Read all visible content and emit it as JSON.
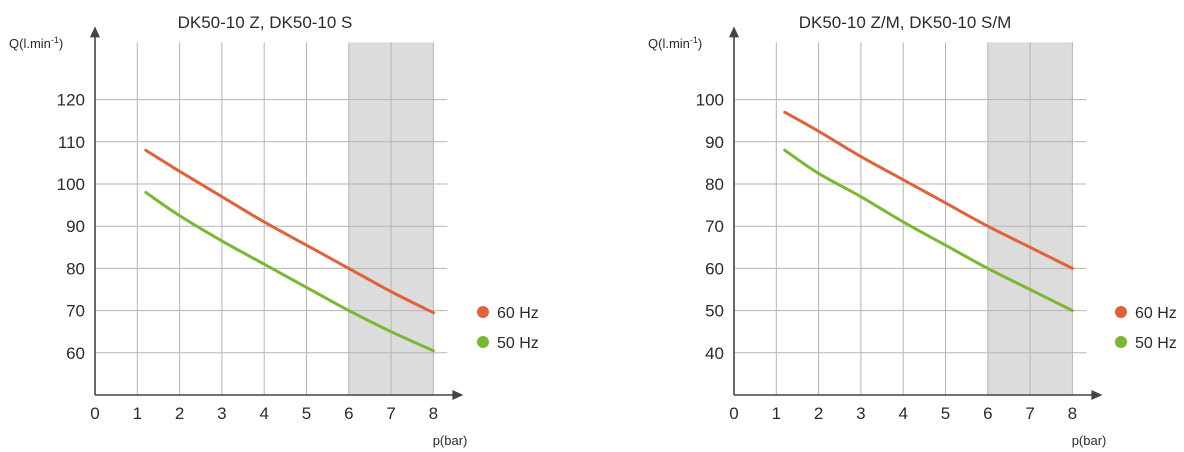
{
  "chart_data": [
    {
      "type": "line",
      "title": "DK50-10 Z, DK50-10 S",
      "ylabel": "Q(l.min",
      "ylabel_sup": "-1",
      "xlabel": "p(bar)",
      "xlim": [
        0,
        8
      ],
      "ylim": [
        50,
        130
      ],
      "x_ticks": [
        0,
        1,
        2,
        3,
        4,
        5,
        6,
        7,
        8
      ],
      "y_ticks": [
        60,
        70,
        80,
        90,
        100,
        110,
        120
      ],
      "shaded_x_range": [
        6,
        8
      ],
      "grid": true,
      "legend_position": "right",
      "series": [
        {
          "name": "60 Hz",
          "color": "#e0623a",
          "x": [
            1.2,
            2,
            3,
            4,
            5,
            6,
            7,
            8
          ],
          "y": [
            108,
            103,
            97,
            91,
            85.5,
            80,
            74.5,
            69.5
          ]
        },
        {
          "name": "50 Hz",
          "color": "#7ab833",
          "x": [
            1.2,
            2,
            3,
            4,
            5,
            6,
            7,
            8
          ],
          "y": [
            98,
            92.5,
            86.5,
            81,
            75.5,
            70,
            65,
            60.5
          ]
        }
      ]
    },
    {
      "type": "line",
      "title": "DK50-10 Z/M, DK50-10 S/M",
      "ylabel": "Q(l.min",
      "ylabel_sup": "-1",
      "xlabel": "p(bar)",
      "xlim": [
        0,
        8
      ],
      "ylim": [
        30,
        110
      ],
      "x_ticks": [
        0,
        1,
        2,
        3,
        4,
        5,
        6,
        7,
        8
      ],
      "y_ticks": [
        40,
        50,
        60,
        70,
        80,
        90,
        100
      ],
      "shaded_x_range": [
        6,
        8
      ],
      "grid": true,
      "legend_position": "right",
      "series": [
        {
          "name": "60 Hz",
          "color": "#e0623a",
          "x": [
            1.2,
            2,
            3,
            4,
            5,
            6,
            7,
            8
          ],
          "y": [
            97,
            92.5,
            86.5,
            81,
            75.5,
            70,
            65,
            60
          ]
        },
        {
          "name": "50 Hz",
          "color": "#7ab833",
          "x": [
            1.2,
            2,
            3,
            4,
            5,
            6,
            7,
            8
          ],
          "y": [
            88,
            82.5,
            77,
            71,
            65.5,
            60,
            55,
            50
          ]
        }
      ]
    }
  ]
}
